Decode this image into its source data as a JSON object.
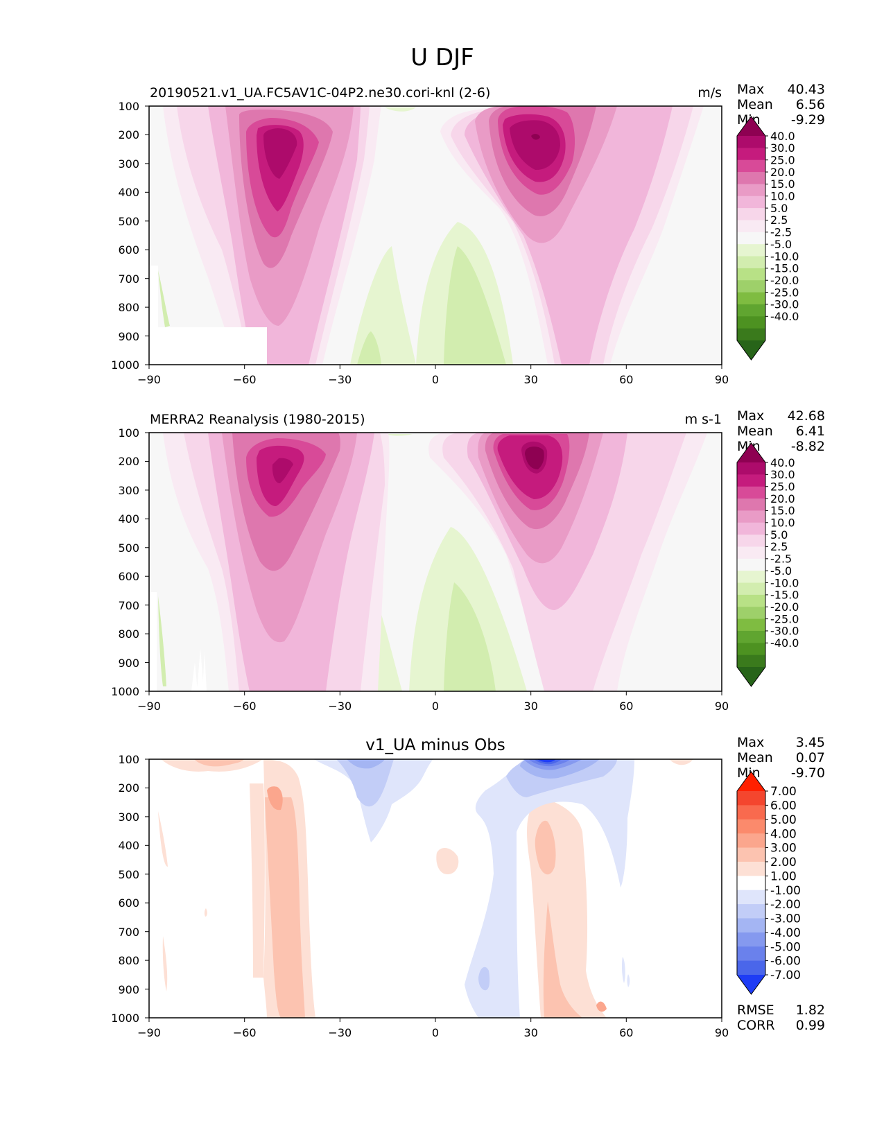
{
  "figure": {
    "title": "U DJF"
  },
  "chart_data": [
    {
      "type": "heatmap",
      "title_left": "20190521.v1_UA.FC5AV1C-04P2.ne30.cori-knl (2-6)",
      "title_center": "",
      "units": "m/s",
      "xlim": [
        -90,
        90
      ],
      "ylim": [
        1000,
        100
      ],
      "x_ticks": [
        "−90",
        "−60",
        "−30",
        "0",
        "30",
        "60",
        "90"
      ],
      "y_ticks": [
        "100",
        "200",
        "300",
        "400",
        "500",
        "600",
        "700",
        "800",
        "900",
        "1000"
      ],
      "stats": [
        {
          "label": "Max",
          "value": "40.43"
        },
        {
          "label": "Mean",
          "value": "6.56"
        },
        {
          "label": "Min",
          "value": "-9.29"
        }
      ],
      "colorbar": {
        "labels": [
          "40.0",
          "30.0",
          "25.0",
          "20.0",
          "15.0",
          "10.0",
          "5.0",
          "2.5",
          "-2.5",
          "-5.0",
          "-10.0",
          "-15.0",
          "-20.0",
          "-25.0",
          "-30.0",
          "-40.0"
        ],
        "colors": [
          "#8e0152",
          "#ad0b6b",
          "#c51b7d",
          "#d84a98",
          "#de77ae",
          "#e99bc6",
          "#f1b6da",
          "#f7d6ea",
          "#f9eaf3",
          "#f7f7f7",
          "#e6f5d0",
          "#d2edaf",
          "#b8e186",
          "#9ed06a",
          "#7fbc41",
          "#60a530",
          "#4d9221",
          "#3a7a1c",
          "#276419"
        ]
      },
      "extra_stats": []
    },
    {
      "type": "heatmap",
      "title_left": "MERRA2 Reanalysis (1980-2015)",
      "title_center": "",
      "units": "m s-1",
      "xlim": [
        -90,
        90
      ],
      "ylim": [
        1000,
        100
      ],
      "x_ticks": [
        "−90",
        "−60",
        "−30",
        "0",
        "30",
        "60",
        "90"
      ],
      "y_ticks": [
        "100",
        "200",
        "300",
        "400",
        "500",
        "600",
        "700",
        "800",
        "900",
        "1000"
      ],
      "stats": [
        {
          "label": "Max",
          "value": "42.68"
        },
        {
          "label": "Mean",
          "value": "6.41"
        },
        {
          "label": "Min",
          "value": "-8.82"
        }
      ],
      "colorbar": {
        "labels": [
          "40.0",
          "30.0",
          "25.0",
          "20.0",
          "15.0",
          "10.0",
          "5.0",
          "2.5",
          "-2.5",
          "-5.0",
          "-10.0",
          "-15.0",
          "-20.0",
          "-25.0",
          "-30.0",
          "-40.0"
        ],
        "colors": [
          "#8e0152",
          "#ad0b6b",
          "#c51b7d",
          "#d84a98",
          "#de77ae",
          "#e99bc6",
          "#f1b6da",
          "#f7d6ea",
          "#f9eaf3",
          "#f7f7f7",
          "#e6f5d0",
          "#d2edaf",
          "#b8e186",
          "#9ed06a",
          "#7fbc41",
          "#60a530",
          "#4d9221",
          "#3a7a1c",
          "#276419"
        ]
      },
      "extra_stats": []
    },
    {
      "type": "heatmap",
      "title_left": "",
      "title_center": "v1_UA minus Obs",
      "units": "",
      "xlim": [
        -90,
        90
      ],
      "ylim": [
        1000,
        100
      ],
      "x_ticks": [
        "−90",
        "−60",
        "−30",
        "0",
        "30",
        "60",
        "90"
      ],
      "y_ticks": [
        "100",
        "200",
        "300",
        "400",
        "500",
        "600",
        "700",
        "800",
        "900",
        "1000"
      ],
      "stats": [
        {
          "label": "Max",
          "value": "3.45"
        },
        {
          "label": "Mean",
          "value": "0.07"
        },
        {
          "label": "Min",
          "value": "-9.70"
        }
      ],
      "colorbar": {
        "labels": [
          "7.00",
          "6.00",
          "5.00",
          "4.00",
          "3.00",
          "2.00",
          "1.00",
          "-1.00",
          "-2.00",
          "-3.00",
          "-4.00",
          "-5.00",
          "-6.00",
          "-7.00"
        ],
        "colors": [
          "#ff2000",
          "#f4462e",
          "#f96a4e",
          "#fb8a6c",
          "#fba68d",
          "#fcc3b0",
          "#fde0d5",
          "#ffffff",
          "#dfe5fb",
          "#c2cdf7",
          "#a4b5f3",
          "#8599ef",
          "#6a81ec",
          "#4a66ea",
          "#1e3cf5"
        ]
      },
      "extra_stats": [
        {
          "label": "RMSE",
          "value": "1.82"
        },
        {
          "label": "CORR",
          "value": "0.99"
        }
      ]
    }
  ]
}
